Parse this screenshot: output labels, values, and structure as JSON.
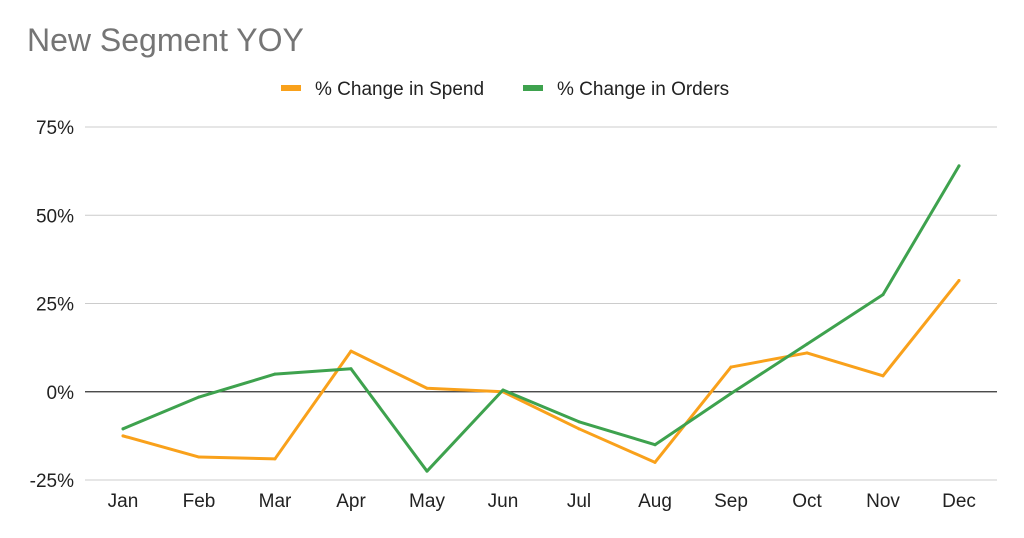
{
  "chart_data": {
    "type": "line",
    "title": "New Segment YOY",
    "xlabel": "",
    "ylabel": "",
    "categories": [
      "Jan",
      "Feb",
      "Mar",
      "Apr",
      "May",
      "Jun",
      "Jul",
      "Aug",
      "Sep",
      "Oct",
      "Nov",
      "Dec"
    ],
    "y_ticks": [
      75,
      50,
      25,
      0,
      -25
    ],
    "y_tick_labels": [
      "75%",
      "50%",
      "25%",
      "0%",
      "-25%"
    ],
    "ylim": [
      -25,
      75
    ],
    "grid": true,
    "legend_position": "top-center",
    "series": [
      {
        "name": "% Change in Spend",
        "color": "#f9a11b",
        "values": [
          -12.5,
          -18.5,
          -19,
          11.5,
          1,
          0,
          -10.5,
          -20,
          7,
          11,
          4.5,
          31.5
        ]
      },
      {
        "name": "% Change in Orders",
        "color": "#3ea24e",
        "values": [
          -10.5,
          -1.5,
          5,
          6.5,
          -22.5,
          0.5,
          -8.5,
          -15,
          -0.5,
          13.5,
          27.5,
          64
        ]
      }
    ]
  }
}
